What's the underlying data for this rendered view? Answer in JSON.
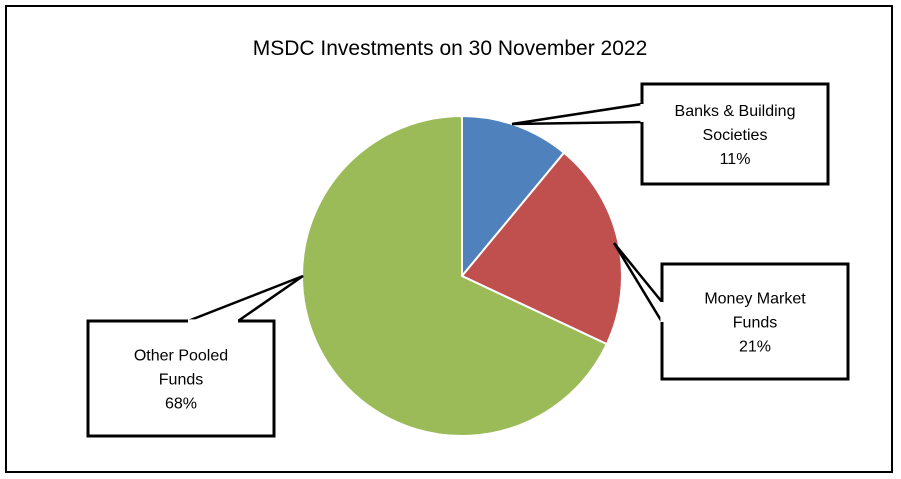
{
  "chart_data": {
    "type": "pie",
    "title": "MSDC Investments on 30 November 2022",
    "slices": [
      {
        "label_lines": [
          "Banks & Building",
          "Societies"
        ],
        "percent_label": "11%",
        "value": 11,
        "color": "#4f81bd"
      },
      {
        "label_lines": [
          "Money Market",
          "Funds"
        ],
        "percent_label": "21%",
        "value": 21,
        "color": "#c0504d"
      },
      {
        "label_lines": [
          "Other Pooled",
          "Funds"
        ],
        "percent_label": "68%",
        "value": 68,
        "color": "#9bbb59"
      }
    ],
    "legend": "none",
    "labels": "callouts"
  }
}
